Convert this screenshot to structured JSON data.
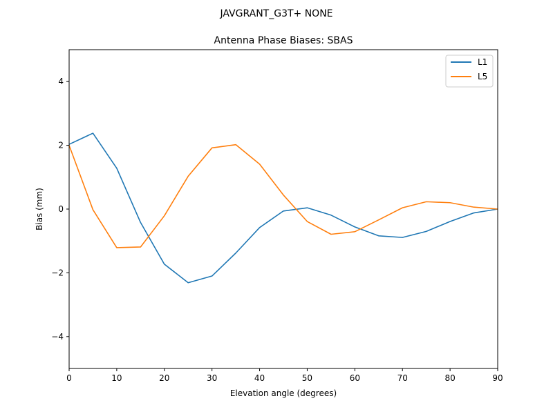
{
  "chart_data": {
    "type": "line",
    "suptitle": "JAVGRANT_G3T+   NONE",
    "title": "Antenna Phase Biases: SBAS",
    "xlabel": "Elevation angle (degrees)",
    "ylabel": "Bias (mm)",
    "xlim": [
      0,
      90
    ],
    "ylim": [
      -5,
      5
    ],
    "xticks": [
      0,
      10,
      20,
      30,
      40,
      50,
      60,
      70,
      80,
      90
    ],
    "yticks": [
      -4,
      -2,
      0,
      2,
      4
    ],
    "ytick_labels": [
      "−4",
      "−2",
      "0",
      "2",
      "4"
    ],
    "grid": false,
    "legend_position": "top-right",
    "x": [
      0,
      5,
      10,
      15,
      20,
      25,
      30,
      35,
      40,
      45,
      50,
      55,
      60,
      65,
      70,
      75,
      80,
      85,
      90
    ],
    "series": [
      {
        "name": "L1",
        "color": "#1f77b4",
        "values": [
          2.03,
          2.38,
          1.28,
          -0.42,
          -1.73,
          -2.31,
          -2.1,
          -1.38,
          -0.58,
          -0.06,
          0.04,
          -0.19,
          -0.56,
          -0.84,
          -0.89,
          -0.7,
          -0.39,
          -0.12,
          0.0
        ]
      },
      {
        "name": "L5",
        "color": "#ff7f0e",
        "values": [
          2.0,
          -0.02,
          -1.21,
          -1.19,
          -0.21,
          1.03,
          1.92,
          2.02,
          1.41,
          0.44,
          -0.39,
          -0.79,
          -0.71,
          -0.34,
          0.04,
          0.23,
          0.2,
          0.06,
          0.0
        ]
      }
    ]
  }
}
